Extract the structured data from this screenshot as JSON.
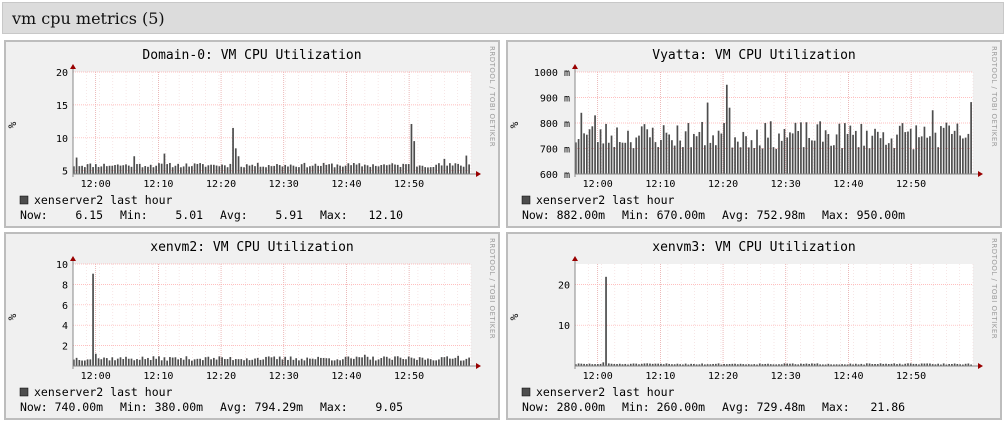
{
  "page": {
    "title": "vm cpu metrics (5)"
  },
  "watermark": "RRDTOOL / TOBI OETIKER",
  "chart_data": [
    {
      "type": "bar",
      "title": "Domain-0: VM CPU Utilization",
      "ylabel": "%",
      "ylim": [
        4.5,
        20
      ],
      "yticks": [
        {
          "v": 5,
          "t": "5"
        },
        {
          "v": 10,
          "t": "10"
        },
        {
          "v": 15,
          "t": "15"
        },
        {
          "v": 20,
          "t": "20"
        }
      ],
      "xlabels": [
        "12:00",
        "12:10",
        "12:20",
        "12:30",
        "12:40",
        "12:50"
      ],
      "baseline": 5.85,
      "noise": 0.35,
      "npoints": 145,
      "seed": 11,
      "spikes": [
        [
          1,
          7.0
        ],
        [
          22,
          7.2
        ],
        [
          33,
          7.6
        ],
        [
          58,
          11.5
        ],
        [
          59,
          8.4
        ],
        [
          60,
          7.2
        ],
        [
          123,
          12.1
        ],
        [
          124,
          9.5
        ],
        [
          135,
          6.8
        ],
        [
          143,
          7.3
        ]
      ],
      "legend": {
        "label": "xenserver2 last hour",
        "now": "Now:    6.15",
        "min": "Min:    5.01",
        "avg": "Avg:    5.91",
        "max": "Max:   12.10"
      }
    },
    {
      "type": "bar",
      "title": "Vyatta: VM CPU Utilization",
      "ylabel": "%",
      "ylim": [
        600,
        1000
      ],
      "yticks": [
        {
          "v": 600,
          "t": "600 m"
        },
        {
          "v": 700,
          "t": "700 m"
        },
        {
          "v": 800,
          "t": "800 m"
        },
        {
          "v": 900,
          "t": "900 m"
        },
        {
          "v": 1000,
          "t": "1000 m"
        }
      ],
      "xlabels": [
        "12:00",
        "12:10",
        "12:20",
        "12:30",
        "12:40",
        "12:50"
      ],
      "baseline": 752,
      "noise": 55,
      "npoints": 145,
      "seed": 23,
      "spikes": [
        [
          2,
          840
        ],
        [
          7,
          830
        ],
        [
          48,
          880
        ],
        [
          55,
          950
        ],
        [
          56,
          860
        ],
        [
          130,
          850
        ],
        [
          144,
          882
        ]
      ],
      "legend": {
        "label": "xenserver2 last hour",
        "now": "Now: 882.00m",
        "min": "Min: 670.00m",
        "avg": "Avg: 752.98m",
        "max": "Max: 950.00m"
      }
    },
    {
      "type": "bar",
      "title": "xenvm2: VM CPU Utilization",
      "ylabel": "%",
      "ylim": [
        0,
        10
      ],
      "yticks": [
        {
          "v": 2,
          "t": "2"
        },
        {
          "v": 4,
          "t": "4"
        },
        {
          "v": 6,
          "t": "6"
        },
        {
          "v": 8,
          "t": "8"
        },
        {
          "v": 10,
          "t": "10"
        }
      ],
      "xlabels": [
        "12:00",
        "12:10",
        "12:20",
        "12:30",
        "12:40",
        "12:50"
      ],
      "baseline": 0.74,
      "noise": 0.22,
      "npoints": 145,
      "seed": 37,
      "spikes": [
        [
          7,
          9.05
        ],
        [
          8,
          1.2
        ],
        [
          106,
          1.1
        ],
        [
          140,
          1.0
        ]
      ],
      "legend": {
        "label": "xenserver2 last hour",
        "now": "Now: 740.00m",
        "min": "Min: 380.00m",
        "avg": "Avg: 794.29m",
        "max": "Max:    9.05"
      }
    },
    {
      "type": "bar",
      "title": "xenvm3: VM CPU Utilization",
      "ylabel": "%",
      "ylim": [
        0,
        25
      ],
      "yticks": [
        {
          "v": 10,
          "t": "10"
        },
        {
          "v": 20,
          "t": "20"
        }
      ],
      "xlabels": [
        "12:00",
        "12:10",
        "12:20",
        "12:30",
        "12:40",
        "12:50"
      ],
      "baseline": 0.5,
      "noise": 0.15,
      "npoints": 145,
      "seed": 51,
      "spikes": [
        [
          11,
          21.86
        ],
        [
          10,
          0.9
        ]
      ],
      "legend": {
        "label": "xenserver2 last hour",
        "now": "Now: 280.00m",
        "min": "Min: 260.00m",
        "avg": "Avg: 729.48m",
        "max": "Max:   21.86"
      }
    }
  ],
  "colors": {
    "bar": "#4d4d4d",
    "grid": "#ffaaaa",
    "vgrid": "#e39c9c",
    "axis": "#888888",
    "arrow": "#990000",
    "swatch": "#4d4d4d"
  }
}
